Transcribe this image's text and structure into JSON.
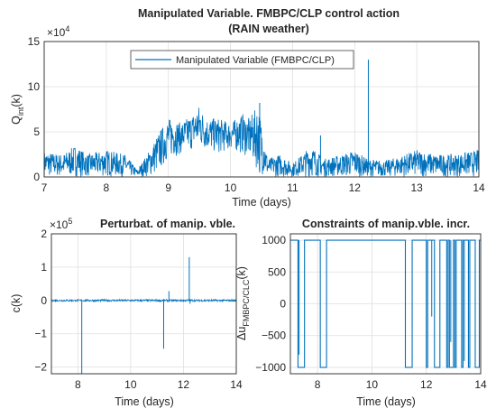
{
  "colors": {
    "series": "#0072BD",
    "axis": "#262626",
    "grid": "#dfdfdf",
    "legend_border": "#262626"
  },
  "chart_data": [
    {
      "type": "line",
      "title": "Manipulated Variable. FMBPC/CLP control action",
      "subtitle": "(RAIN weather)",
      "xlabel": "Time (days)",
      "ylabel_main": "Q",
      "ylabel_sub": "int",
      "ylabel_tail": "(k)",
      "xlim": [
        7,
        14
      ],
      "ylim": [
        0,
        15
      ],
      "y_exponent": "×10",
      "y_exponent_power": "4",
      "xticks": [
        7,
        8,
        9,
        10,
        11,
        12,
        13,
        14
      ],
      "yticks": [
        0,
        5,
        10,
        15
      ],
      "grid": true,
      "legend_position": "top",
      "series": [
        {
          "name": "Manipulated Variable (FMBPC/CLP)",
          "envelope_x": [
            7.0,
            7.3,
            7.5,
            7.7,
            8.0,
            8.3,
            8.5,
            8.7,
            8.85,
            9.0,
            9.2,
            9.4,
            9.5,
            9.6,
            9.8,
            10.0,
            10.2,
            10.3,
            10.45,
            10.6,
            10.8,
            11.0,
            11.3,
            11.5,
            11.8,
            12.0,
            12.2,
            12.5,
            12.8,
            13.0,
            13.3,
            13.6,
            14.0
          ],
          "envelope_low": [
            0.0,
            0.0,
            0.0,
            0.0,
            0.0,
            0.0,
            0.0,
            0.0,
            0.5,
            2.0,
            2.5,
            3.0,
            3.0,
            3.0,
            2.5,
            3.0,
            2.5,
            2.0,
            0.5,
            0.0,
            0.0,
            0.0,
            0.0,
            0.0,
            0.0,
            0.0,
            0.0,
            0.0,
            0.0,
            0.0,
            0.0,
            0.0,
            0.0
          ],
          "envelope_high": [
            2.8,
            2.5,
            3.5,
            2.5,
            3.0,
            2.5,
            0.8,
            3.0,
            5.0,
            6.5,
            6.0,
            7.0,
            8.0,
            6.5,
            6.5,
            6.0,
            7.0,
            6.5,
            8.0,
            2.0,
            2.5,
            1.5,
            3.5,
            2.0,
            2.5,
            3.0,
            2.0,
            1.8,
            2.5,
            3.0,
            2.5,
            2.5,
            3.0
          ],
          "spikes": [
            {
              "x": 10.47,
              "y": 8.2
            },
            {
              "x": 11.45,
              "y": 4.6
            },
            {
              "x": 12.22,
              "y": 13.0
            }
          ]
        }
      ]
    },
    {
      "type": "line",
      "title": "Perturbat. of manip. vble.",
      "xlabel": "Time (days)",
      "ylabel": "c(k)",
      "xlim": [
        7,
        14
      ],
      "ylim": [
        -2.2,
        2
      ],
      "y_exponent": "×10",
      "y_exponent_power": "5",
      "xticks": [
        8,
        10,
        12,
        14
      ],
      "yticks": [
        -2,
        -1,
        0,
        1,
        2
      ],
      "grid": true,
      "series": [
        {
          "baseline": 0,
          "noise": 0.03,
          "spikes": [
            {
              "x": 8.15,
              "y": -2.2
            },
            {
              "x": 11.25,
              "y": -1.45
            },
            {
              "x": 11.45,
              "y": 0.28
            },
            {
              "x": 12.22,
              "y": 1.3
            },
            {
              "x": 12.25,
              "y": -0.1
            }
          ]
        }
      ]
    },
    {
      "type": "line",
      "title": "Constraints of manip.vble. incr.",
      "xlabel": "Time (days)",
      "ylabel_main": "Δu",
      "ylabel_sub": "FMBPC/CLC",
      "ylabel_tail": "(k)",
      "xlim": [
        7,
        14
      ],
      "ylim": [
        -1100,
        1100
      ],
      "xticks": [
        8,
        10,
        12,
        14
      ],
      "yticks": [
        -1000,
        -500,
        0,
        500,
        1000
      ],
      "grid": true,
      "series": [
        {
          "step_x": [
            7.0,
            7.25,
            7.28,
            7.5,
            7.52,
            8.05,
            8.1,
            8.3,
            8.33,
            11.2,
            11.23,
            11.45,
            11.48,
            11.7,
            12.0,
            12.05,
            12.15,
            12.3,
            12.45,
            12.5,
            12.7,
            12.75,
            12.8,
            12.85,
            13.0,
            13.05,
            13.1,
            13.2,
            13.3,
            13.35,
            13.45,
            13.55,
            13.6,
            13.75,
            13.8,
            13.95,
            14.0
          ],
          "step_y": [
            1000,
            1000,
            -1000,
            -1000,
            1000,
            1000,
            -1000,
            -1000,
            1000,
            1000,
            -1000,
            -1000,
            1000,
            1000,
            -1000,
            1000,
            1000,
            -1000,
            -1000,
            1000,
            1000,
            -1000,
            1000,
            -1000,
            1000,
            -1000,
            1000,
            1000,
            -1000,
            1000,
            1000,
            -1000,
            1000,
            1000,
            -1000,
            1000,
            1000
          ],
          "dips": [
            {
              "x": 7.32,
              "y": -800
            },
            {
              "x": 12.2,
              "y": -200
            },
            {
              "x": 12.9,
              "y": -600
            },
            {
              "x": 13.4,
              "y": -900
            }
          ]
        }
      ]
    }
  ]
}
